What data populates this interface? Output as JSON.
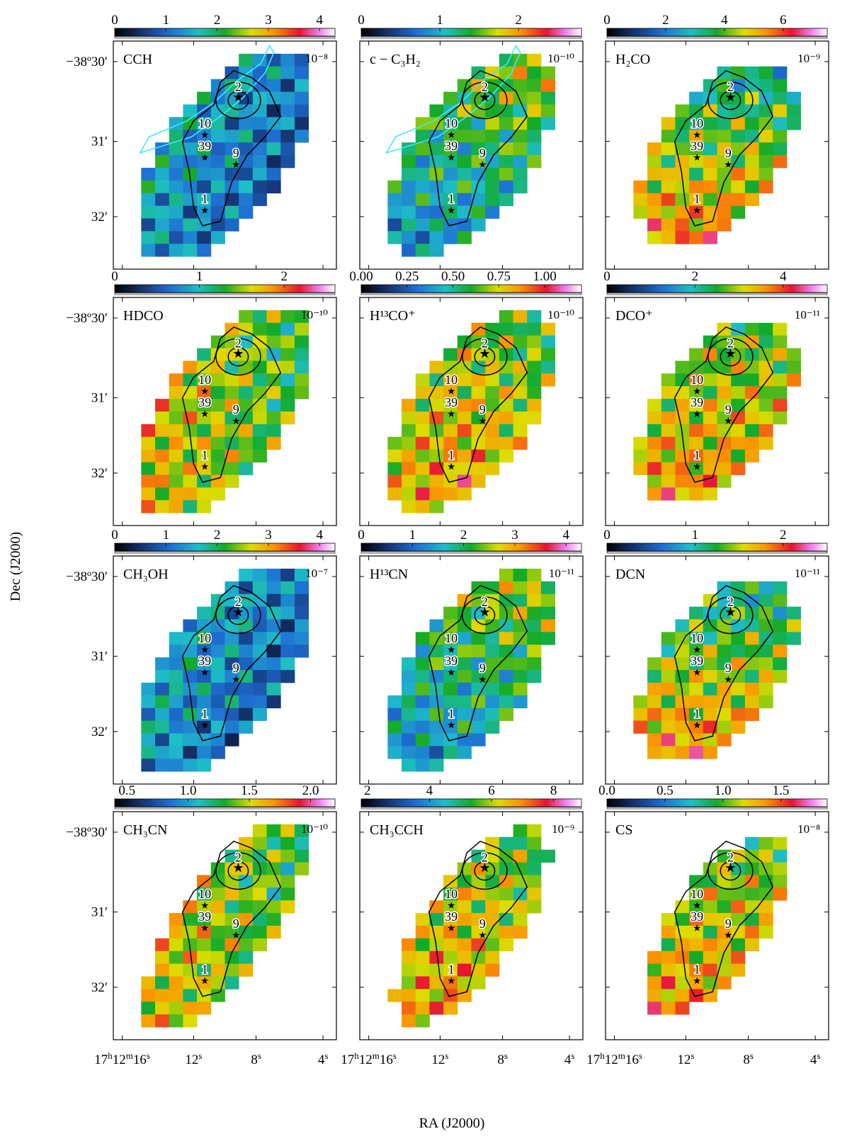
{
  "figure": {
    "xlabel": "RA (J2000)",
    "ylabel": "Dec (J2000)",
    "dec_ticks": [
      "−38º30′",
      "31′",
      "32′"
    ],
    "ra_ticks": [
      {
        "main": "17",
        "h": "h",
        "m_val": "12",
        "m": "m",
        "s_val": "16",
        "s": "s"
      },
      {
        "main": "12",
        "s": "s"
      },
      {
        "main": "8",
        "s": "s"
      },
      {
        "main": "4",
        "s": "s"
      }
    ],
    "sources": [
      "2",
      "10",
      "39",
      "9",
      "1"
    ]
  },
  "chart_data": [
    {
      "type": "heatmap",
      "molecule": "CCH",
      "scale": "10⁻⁸",
      "colorbar_ticks": [
        "0",
        "1",
        "2",
        "3",
        "4"
      ],
      "colorbar_range": [
        0,
        4.3
      ],
      "cyan_contour": true
    },
    {
      "type": "heatmap",
      "molecule": "c − C₃H₂",
      "scale": "10⁻¹⁰",
      "colorbar_ticks": [
        "0",
        "1",
        "2"
      ],
      "colorbar_range": [
        0,
        2.8
      ],
      "cyan_contour": true
    },
    {
      "type": "heatmap",
      "molecule": "H₂CO",
      "scale": "10⁻⁹",
      "colorbar_ticks": [
        "0",
        "2",
        "4",
        "6"
      ],
      "colorbar_range": [
        0,
        7.5
      ]
    },
    {
      "type": "heatmap",
      "molecule": "HDCO",
      "scale": "10⁻¹⁰",
      "colorbar_ticks": [
        "0",
        "1",
        "2"
      ],
      "colorbar_range": [
        0,
        2.6
      ]
    },
    {
      "type": "heatmap",
      "molecule": "H¹³CO⁺",
      "scale": "10⁻¹⁰",
      "colorbar_ticks": [
        "0.00",
        "0.25",
        "0.50",
        "0.75",
        "1.00"
      ],
      "colorbar_range": [
        0,
        1.2
      ]
    },
    {
      "type": "heatmap",
      "molecule": "DCO⁺",
      "scale": "10⁻¹¹",
      "colorbar_ticks": [
        "0",
        "2",
        "4"
      ],
      "colorbar_range": [
        0,
        5.0
      ]
    },
    {
      "type": "heatmap",
      "molecule": "CH₃OH",
      "scale": "10⁻⁷",
      "colorbar_ticks": [
        "0",
        "1",
        "2",
        "3",
        "4"
      ],
      "colorbar_range": [
        0,
        4.3
      ]
    },
    {
      "type": "heatmap",
      "molecule": "H¹³CN",
      "scale": "10⁻¹¹",
      "colorbar_ticks": [
        "0",
        "1",
        "2",
        "3",
        "4"
      ],
      "colorbar_range": [
        0,
        4.3
      ]
    },
    {
      "type": "heatmap",
      "molecule": "DCN",
      "scale": "10⁻¹¹",
      "colorbar_ticks": [
        "0",
        "1",
        "2"
      ],
      "colorbar_range": [
        0,
        2.5
      ]
    },
    {
      "type": "heatmap",
      "molecule": "CH₃CN",
      "scale": "10⁻¹⁰",
      "colorbar_ticks": [
        "0.5",
        "1.0",
        "1.5",
        "2.0"
      ],
      "colorbar_range": [
        0.4,
        2.2
      ]
    },
    {
      "type": "heatmap",
      "molecule": "CH₃CCH",
      "scale": "10⁻⁹",
      "colorbar_ticks": [
        "2",
        "4",
        "6",
        "8"
      ],
      "colorbar_range": [
        1.8,
        8.9
      ]
    },
    {
      "type": "heatmap",
      "molecule": "CS",
      "scale": "10⁻⁸",
      "colorbar_ticks": [
        "0.0",
        "0.5",
        "1.0",
        "1.5"
      ],
      "colorbar_range": [
        0,
        1.9
      ]
    }
  ]
}
